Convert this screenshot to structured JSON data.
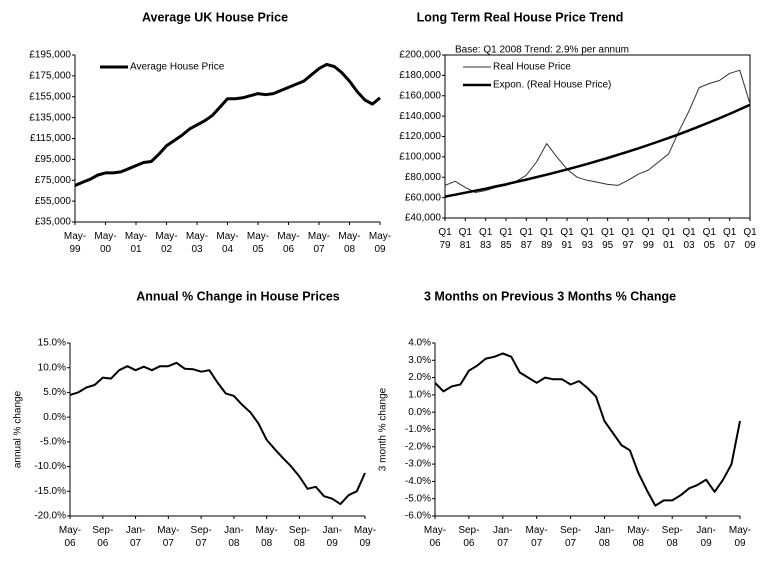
{
  "chart_data": [
    {
      "type": "line",
      "title": "Average UK House Price",
      "categories": [
        "May-\n99",
        null,
        null,
        null,
        "May-\n00",
        null,
        null,
        null,
        "May-\n01",
        null,
        null,
        null,
        "May-\n02",
        null,
        null,
        null,
        "May-\n03",
        null,
        null,
        null,
        "May-\n04",
        null,
        null,
        null,
        "May-\n05",
        null,
        null,
        null,
        "May-\n06",
        null,
        null,
        null,
        "May-\n07",
        null,
        null,
        null,
        "May-\n08",
        null,
        null,
        null,
        "May-\n09"
      ],
      "series": [
        {
          "name": "Average House Price",
          "color": "#000000",
          "line_width": 3,
          "values": [
            70000,
            73000,
            76000,
            80000,
            82000,
            82000,
            83000,
            86000,
            89000,
            92000,
            93000,
            100000,
            108000,
            113000,
            118000,
            124000,
            128000,
            132000,
            137000,
            145000,
            153000,
            153000,
            154000,
            156000,
            158000,
            157000,
            158000,
            161000,
            164000,
            167000,
            170000,
            176000,
            182000,
            186000,
            184000,
            178000,
            170000,
            160000,
            152000,
            148000,
            154000
          ]
        }
      ],
      "ylim": [
        35000,
        195000
      ],
      "yticks": [
        {
          "value": 35000,
          "label": "£35,000"
        },
        {
          "value": 55000,
          "label": "£55,000"
        },
        {
          "value": 75000,
          "label": "£75,000"
        },
        {
          "value": 95000,
          "label": "£95,000"
        },
        {
          "value": 115000,
          "label": "£115,000"
        },
        {
          "value": 135000,
          "label": "£135,000"
        },
        {
          "value": 155000,
          "label": "£155,000"
        },
        {
          "value": 175000,
          "label": "£175,000"
        },
        {
          "value": 195000,
          "label": "£195,000"
        }
      ],
      "legend": "top-left",
      "frame": false
    },
    {
      "type": "line",
      "title": "Long Term Real House  Price Trend",
      "annotation": "Base: Q1 2008 Trend: 2.9% per annum",
      "categories": [
        "Q1\n79",
        null,
        "Q1\n81",
        null,
        "Q1\n83",
        null,
        "Q1\n85",
        null,
        "Q1\n87",
        null,
        "Q1\n89",
        null,
        "Q1\n91",
        null,
        "Q1\n93",
        null,
        "Q1\n95",
        null,
        "Q1\n97",
        null,
        "Q1\n99",
        null,
        "Q1\n01",
        null,
        "Q1\n03",
        null,
        "Q1\n05",
        null,
        "Q1\n07",
        null,
        "Q1\n09"
      ],
      "series": [
        {
          "name": "Real House Price",
          "color": "#333333",
          "line_width": 1,
          "values": [
            72000,
            76000,
            70000,
            65000,
            67000,
            70000,
            72000,
            76000,
            82000,
            95000,
            113000,
            100000,
            88000,
            80000,
            77000,
            75000,
            73000,
            72000,
            77000,
            83000,
            87000,
            95000,
            103000,
            125000,
            145000,
            168000,
            172000,
            175000,
            182000,
            185000,
            152000
          ]
        },
        {
          "name": "Expon. (Real House Price)",
          "color": "#000000",
          "line_width": 2.5,
          "values": [
            61000,
            62900,
            64800,
            66800,
            68800,
            71000,
            73100,
            75400,
            77700,
            80100,
            82500,
            85100,
            87700,
            90400,
            93100,
            96000,
            98900,
            102000,
            105100,
            108300,
            111700,
            115100,
            118600,
            122200,
            126000,
            129900,
            133800,
            138000,
            142200,
            146600,
            151100
          ]
        }
      ],
      "ylim": [
        40000,
        200000
      ],
      "yticks": [
        {
          "value": 40000,
          "label": "£40,000"
        },
        {
          "value": 60000,
          "label": "£60,000"
        },
        {
          "value": 80000,
          "label": "£80,000"
        },
        {
          "value": 100000,
          "label": "£100,000"
        },
        {
          "value": 120000,
          "label": "£120,000"
        },
        {
          "value": 140000,
          "label": "£140,000"
        },
        {
          "value": 160000,
          "label": "£160,000"
        },
        {
          "value": 180000,
          "label": "£180,000"
        },
        {
          "value": 200000,
          "label": "£200,000"
        }
      ],
      "legend": "top-left",
      "frame": true
    },
    {
      "type": "line",
      "title": "Annual % Change in House Prices",
      "ylabel": "annual % change",
      "categories": [
        "May-\n06",
        null,
        null,
        null,
        "Sep-\n06",
        null,
        null,
        null,
        "Jan-\n07",
        null,
        null,
        null,
        "May-\n07",
        null,
        null,
        null,
        "Sep-\n07",
        null,
        null,
        null,
        "Jan-\n08",
        null,
        null,
        null,
        "May-\n08",
        null,
        null,
        null,
        "Sep-\n08",
        null,
        null,
        null,
        "Jan-\n09",
        null,
        null,
        null,
        "May-\n09"
      ],
      "series": [
        {
          "color": "#000000",
          "line_width": 2,
          "values": [
            4.5,
            5,
            6,
            6.5,
            8,
            7.8,
            9.5,
            10.3,
            9.5,
            10.2,
            9.5,
            10.3,
            10.3,
            11,
            9.8,
            9.7,
            9.2,
            9.5,
            7,
            4.8,
            4.3,
            2.5,
            1,
            -1.3,
            -4.6,
            -6.5,
            -8.3,
            -10,
            -12,
            -14.5,
            -14.1,
            -16,
            -16.5,
            -17.6,
            -15.8,
            -15,
            -11.3
          ]
        }
      ],
      "ylim": [
        -20,
        15
      ],
      "yticks": [
        {
          "value": -20,
          "label": "-20.0%"
        },
        {
          "value": -15,
          "label": "-15.0%"
        },
        {
          "value": -10,
          "label": "-10.0%"
        },
        {
          "value": -5,
          "label": "-5.0%"
        },
        {
          "value": 0,
          "label": "0.0%"
        },
        {
          "value": 5,
          "label": "5.0%"
        },
        {
          "value": 10,
          "label": "10.0%"
        },
        {
          "value": 15,
          "label": "15.0%"
        }
      ],
      "frame": false
    },
    {
      "type": "line",
      "title": "3 Months on Previous 3 Months % Change",
      "ylabel": "3 month % change",
      "categories": [
        "May-\n06",
        null,
        null,
        null,
        "Sep-\n06",
        null,
        null,
        null,
        "Jan-\n07",
        null,
        null,
        null,
        "May-\n07",
        null,
        null,
        null,
        "Sep-\n07",
        null,
        null,
        null,
        "Jan-\n08",
        null,
        null,
        null,
        "May-\n08",
        null,
        null,
        null,
        "Sep-\n08",
        null,
        null,
        null,
        "Jan-\n09",
        null,
        null,
        null,
        "May-\n09"
      ],
      "series": [
        {
          "color": "#000000",
          "line_width": 2,
          "values": [
            1.7,
            1.2,
            1.5,
            1.6,
            2.4,
            2.7,
            3.1,
            3.2,
            3.4,
            3.2,
            2.3,
            2.0,
            1.7,
            2.0,
            1.9,
            1.9,
            1.6,
            1.8,
            1.4,
            0.9,
            -0.5,
            -1.2,
            -1.9,
            -2.2,
            -3.5,
            -4.5,
            -5.4,
            -5.1,
            -5.1,
            -4.8,
            -4.4,
            -4.2,
            -3.9,
            -4.6,
            -3.9,
            -3.0,
            -0.5
          ]
        }
      ],
      "ylim": [
        -6,
        4
      ],
      "yticks": [
        {
          "value": -6,
          "label": "-6.0%"
        },
        {
          "value": -5,
          "label": "-5.0%"
        },
        {
          "value": -4,
          "label": "-4.0%"
        },
        {
          "value": -3,
          "label": "-3.0%"
        },
        {
          "value": -2,
          "label": "-2.0%"
        },
        {
          "value": -1,
          "label": "-1.0%"
        },
        {
          "value": 0,
          "label": "0.0%"
        },
        {
          "value": 1,
          "label": "1.0%"
        },
        {
          "value": 2,
          "label": "2.0%"
        },
        {
          "value": 3,
          "label": "3.0%"
        },
        {
          "value": 4,
          "label": "4.0%"
        }
      ],
      "frame": false
    }
  ]
}
